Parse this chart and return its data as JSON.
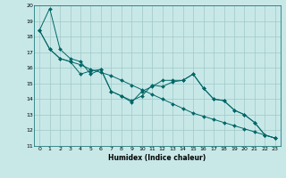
{
  "xlabel": "Humidex (Indice chaleur)",
  "background_color": "#c8e8e8",
  "grid_color": "#a0c8c8",
  "line_color": "#006666",
  "xlim": [
    -0.5,
    23.5
  ],
  "ylim": [
    11,
    20
  ],
  "xticks": [
    0,
    1,
    2,
    3,
    4,
    5,
    6,
    7,
    8,
    9,
    10,
    11,
    12,
    13,
    14,
    15,
    16,
    17,
    18,
    19,
    20,
    21,
    22,
    23
  ],
  "yticks": [
    11,
    12,
    13,
    14,
    15,
    16,
    17,
    18,
    19,
    20
  ],
  "line1": [
    18.4,
    19.8,
    17.2,
    16.6,
    16.4,
    15.6,
    15.9,
    14.5,
    14.2,
    13.9,
    14.2,
    14.9,
    14.8,
    15.1,
    15.2,
    15.6,
    14.7,
    14.0,
    13.9,
    13.3,
    13.0,
    12.5,
    11.7,
    11.5
  ],
  "line2": [
    18.4,
    17.2,
    16.6,
    16.4,
    15.6,
    15.8,
    15.9,
    14.5,
    14.2,
    13.8,
    14.5,
    14.8,
    15.2,
    15.2,
    15.2,
    15.6,
    14.7,
    14.0,
    13.9,
    13.3,
    13.0,
    12.5,
    11.7,
    11.5
  ],
  "line3": [
    18.4,
    17.2,
    16.6,
    16.4,
    16.2,
    15.9,
    15.7,
    15.5,
    15.2,
    14.9,
    14.6,
    14.3,
    14.0,
    13.7,
    13.4,
    13.1,
    12.9,
    12.7,
    12.5,
    12.3,
    12.1,
    11.9,
    11.7,
    11.5
  ]
}
